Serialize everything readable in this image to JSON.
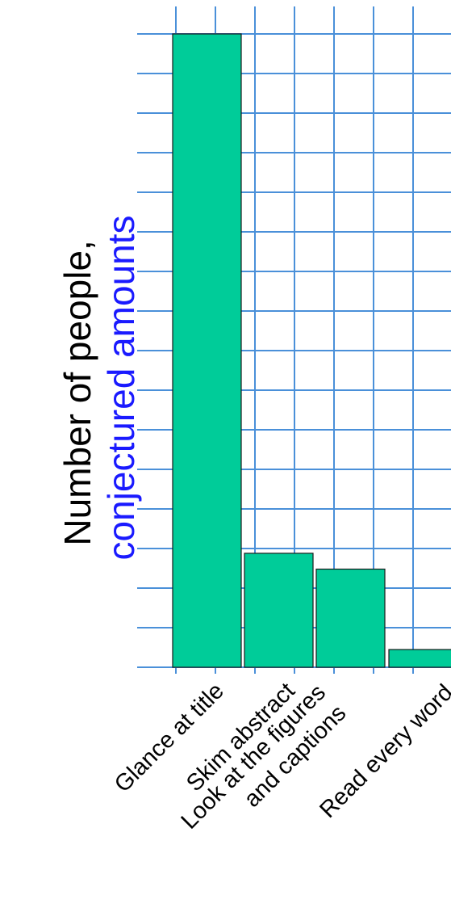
{
  "chart_data": {
    "type": "bar",
    "title": "",
    "xlabel": "",
    "ylabel_line1": "Number of people,",
    "ylabel_line2": "conjectured amounts",
    "categories": [
      [
        "Glance at title"
      ],
      [
        "Skim abstract"
      ],
      [
        "Look at the figures",
        "and captions"
      ],
      [
        "Read every word"
      ]
    ],
    "values": [
      100,
      18,
      15.5,
      2.8
    ],
    "ylim": [
      0,
      100
    ],
    "grid": true,
    "colors": {
      "bar": "#00cc99",
      "grid": "#4a90d9",
      "ylabel_line1": "#000000",
      "ylabel_line2": "#1a1aff"
    }
  }
}
